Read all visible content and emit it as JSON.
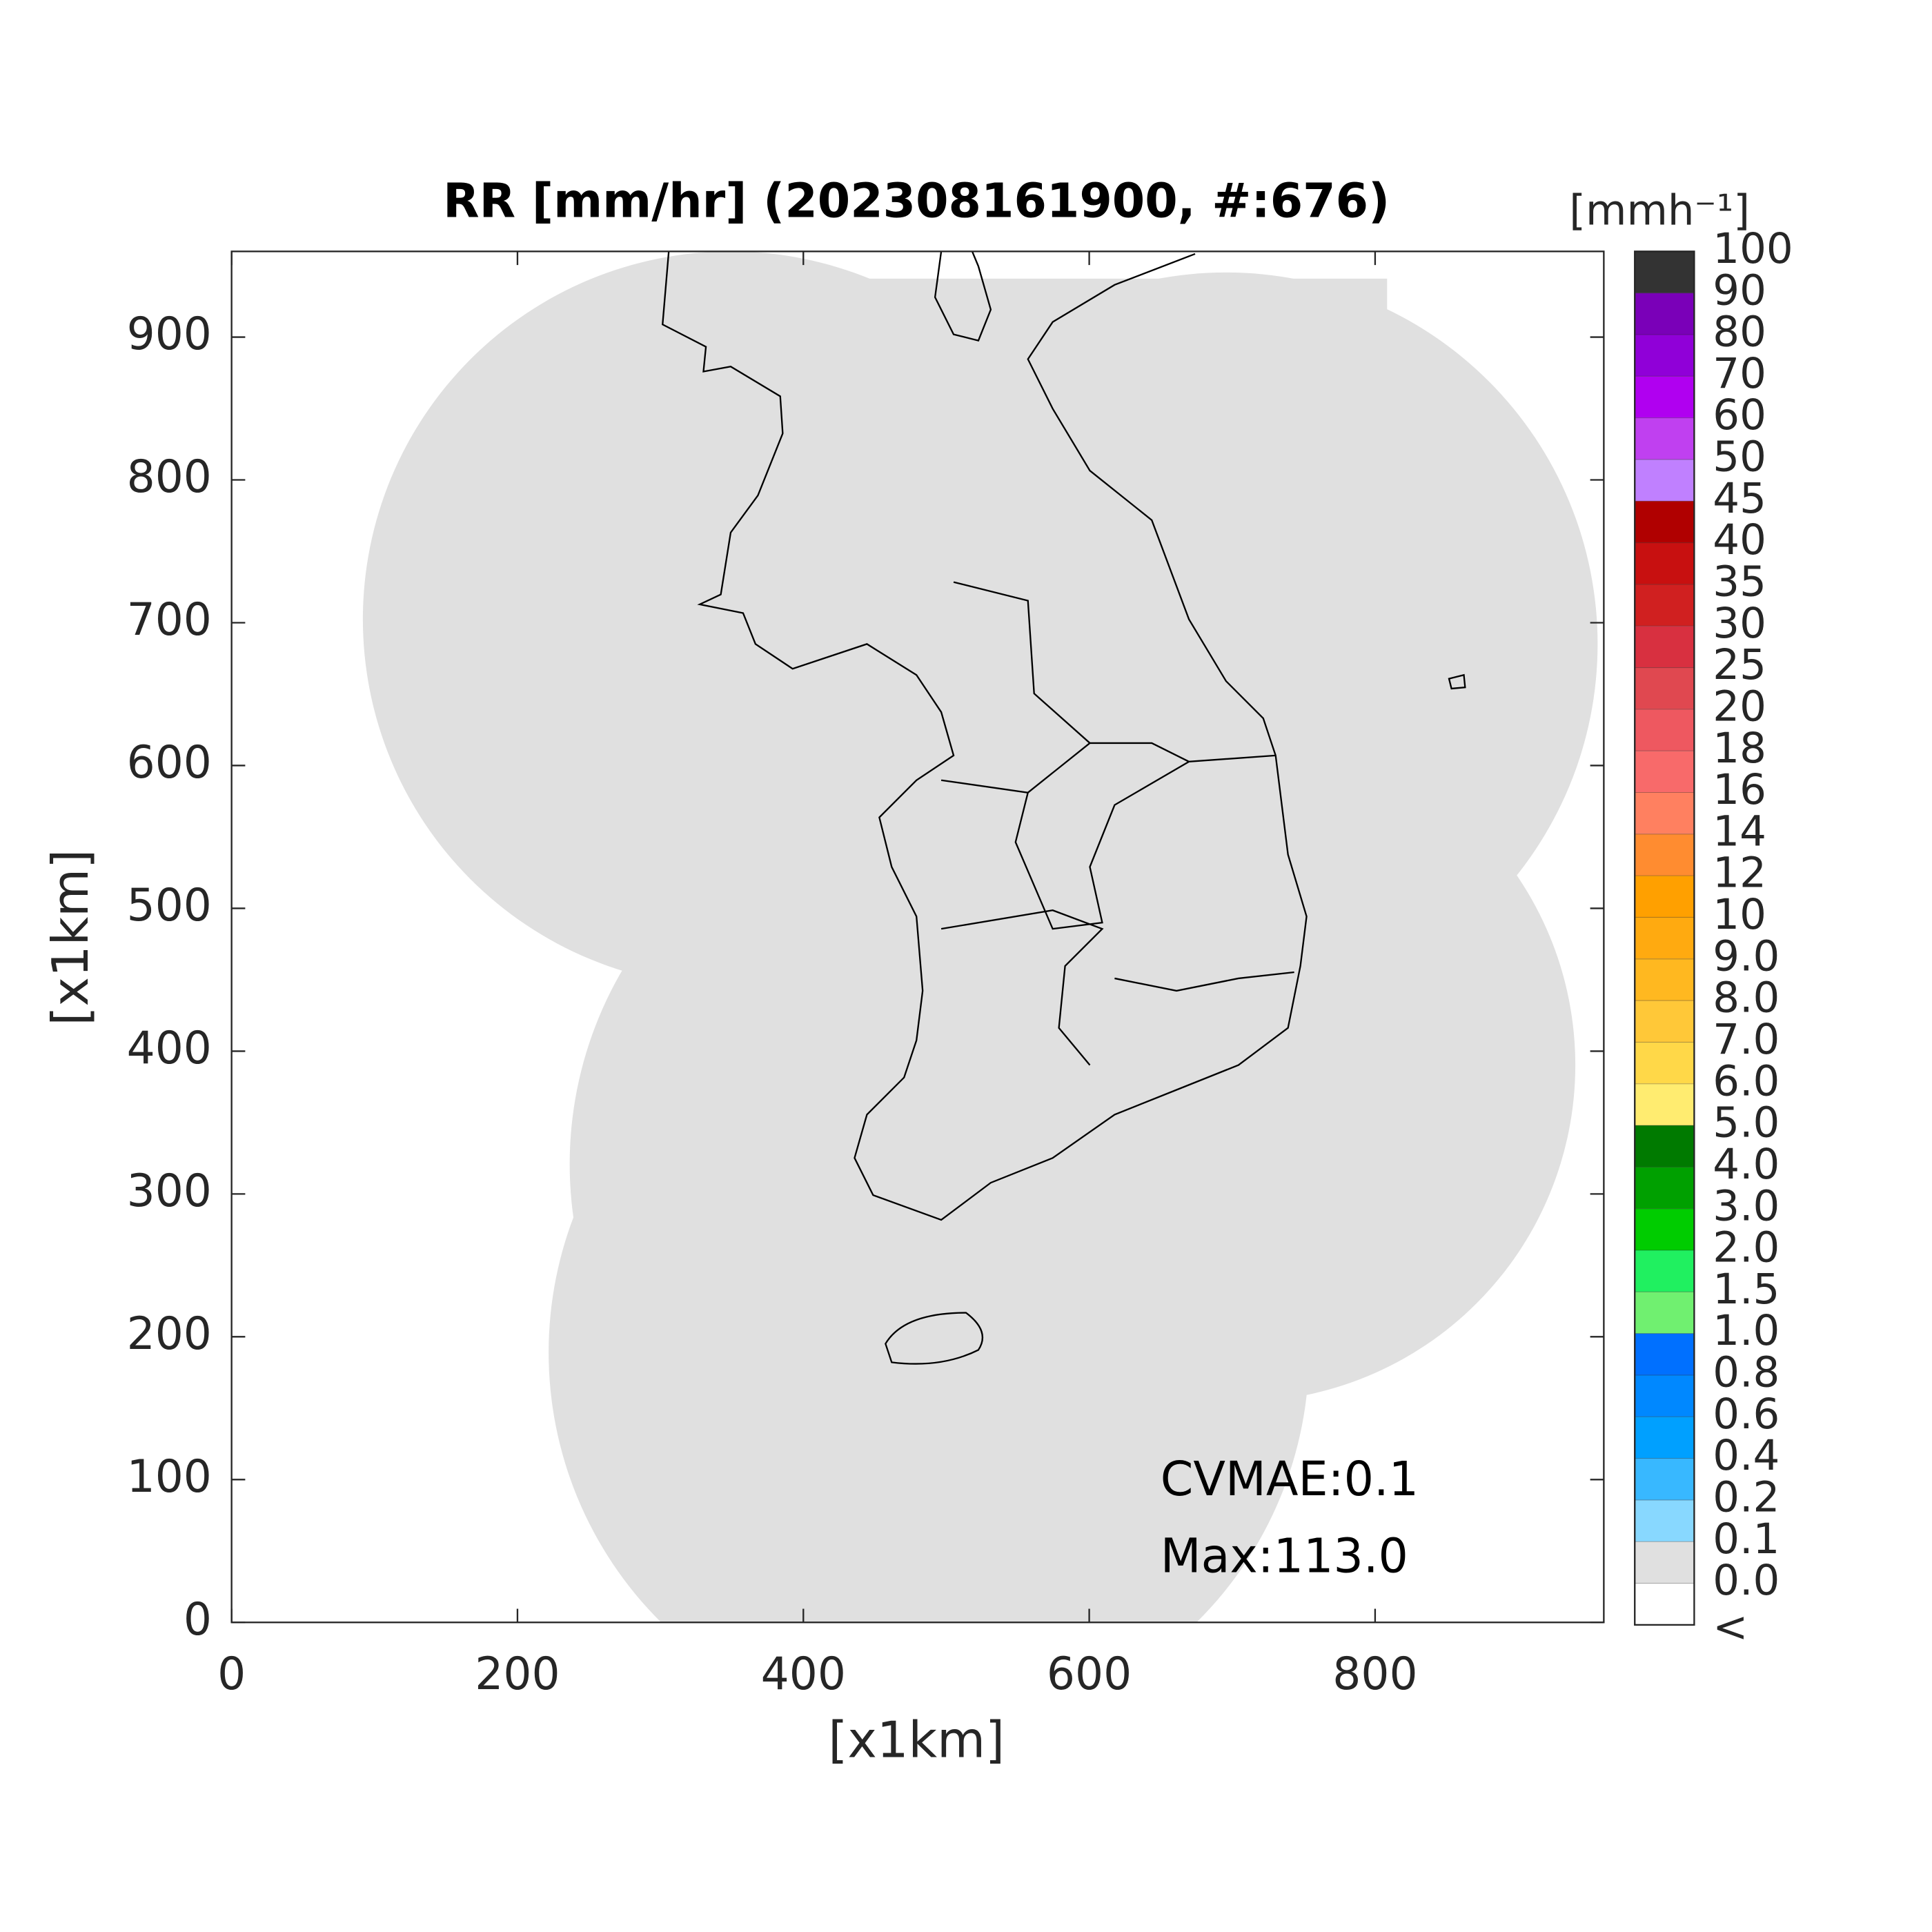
{
  "chart_data": {
    "type": "map",
    "title": "RR [mm/hr] (202308161900, #:676)",
    "x_label": "[x1km]",
    "y_label": "[x1km]",
    "xlim": [
      0,
      960
    ],
    "ylim": [
      0,
      960
    ],
    "xticks": [
      0,
      200,
      400,
      600,
      800
    ],
    "yticks": [
      0,
      100,
      200,
      300,
      400,
      500,
      600,
      700,
      800,
      900
    ],
    "annotations": [
      "CVMAE:0.1",
      "Max:113.0"
    ],
    "colorbar": {
      "unit_label": "[mmh⁻¹]",
      "ticks": [
        100,
        90,
        80,
        70,
        60,
        50,
        45,
        40,
        35,
        30,
        25,
        20,
        18,
        16,
        14,
        12,
        10,
        {
          "value": 9,
          "label": "9.0"
        },
        {
          "value": 8,
          "label": "8.0"
        },
        {
          "value": 7,
          "label": "7.0"
        },
        {
          "value": 6,
          "label": "6.0"
        },
        {
          "value": 5,
          "label": "5.0"
        },
        {
          "value": 4,
          "label": "4.0"
        },
        {
          "value": 3,
          "label": "3.0"
        },
        {
          "value": 2,
          "label": "2.0"
        },
        1.5,
        {
          "value": 1,
          "label": "1.0"
        },
        0.8,
        0.6,
        0.4,
        0.2,
        0.1,
        {
          "value": 0,
          "label": "0.0"
        }
      ],
      "under_label": "<",
      "colors": [
        "#333333",
        "#7a00b8",
        "#9000d8",
        "#b000f0",
        "#c040f0",
        "#c080ff",
        "#b00000",
        "#c81010",
        "#d02020",
        "#d83040",
        "#e04850",
        "#ee5860",
        "#f86a6a",
        "#ff8060",
        "#ff8c30",
        "#ffa000",
        "#ffaa10",
        "#ffb820",
        "#ffc838",
        "#ffd848",
        "#ffec70",
        "#007a00",
        "#00a000",
        "#00cc00",
        "#20f060",
        "#70f070",
        "#0070ff",
        "#0088ff",
        "#00a0ff",
        "#38b8ff",
        "#88d8ff",
        "#e0e0e0",
        "#ffffff"
      ]
    }
  }
}
